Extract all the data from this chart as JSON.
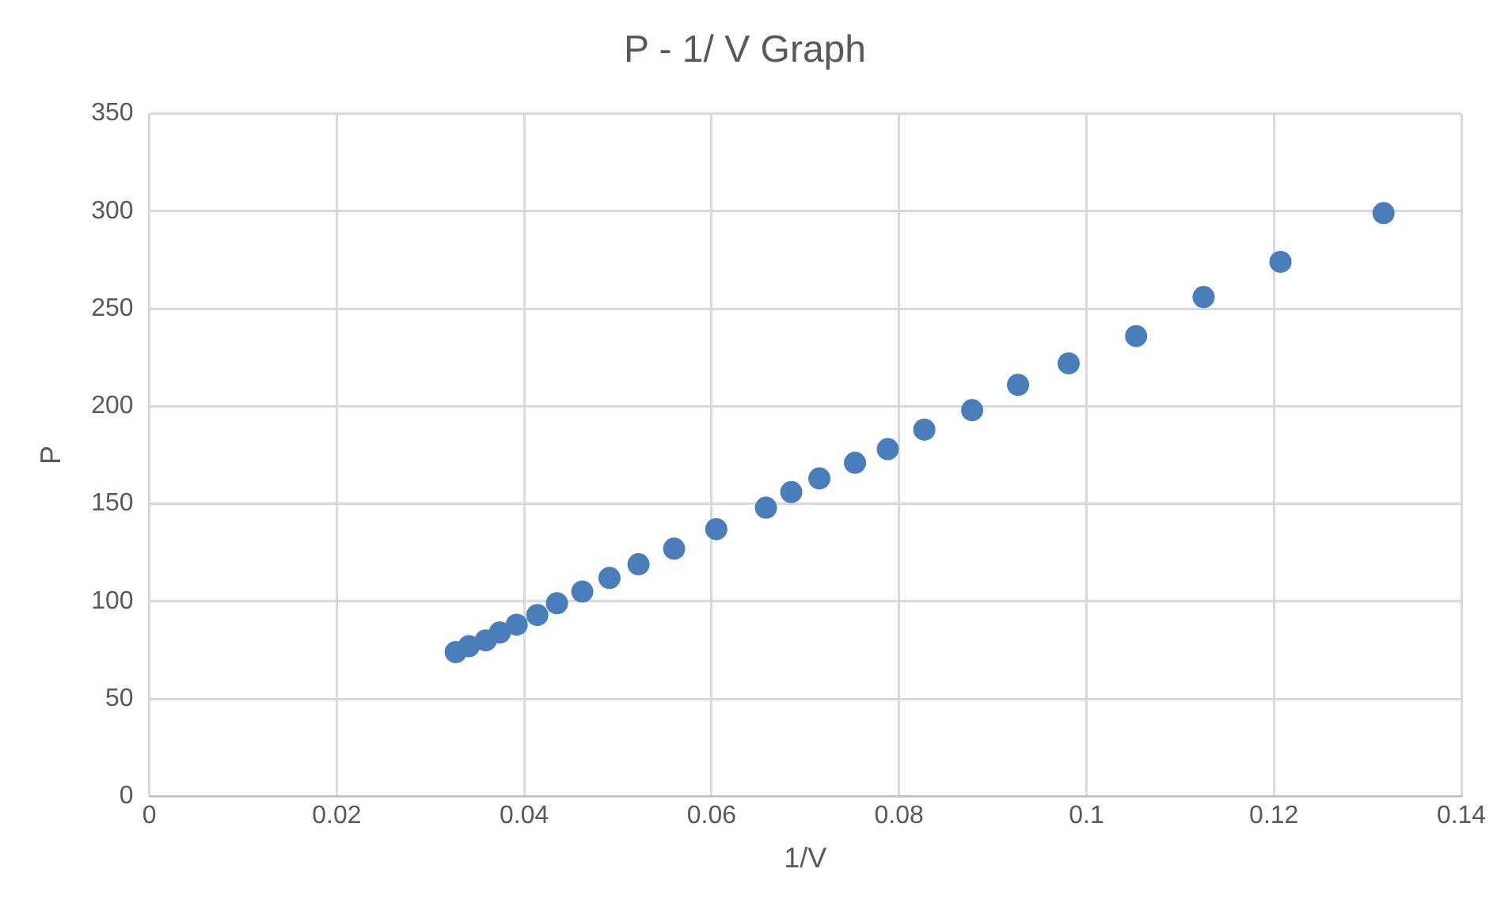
{
  "chart_data": {
    "type": "scatter",
    "title": "P - 1/ V Graph",
    "xlabel": "1/V",
    "ylabel": "P",
    "x": [
      0.0327,
      0.0341,
      0.0359,
      0.0374,
      0.0392,
      0.0414,
      0.0435,
      0.0462,
      0.0491,
      0.0522,
      0.056,
      0.0605,
      0.0658,
      0.0685,
      0.0715,
      0.0753,
      0.0788,
      0.0827,
      0.0878,
      0.0927,
      0.0981,
      0.1053,
      0.1125,
      0.1207,
      0.1317
    ],
    "series": [
      {
        "color": "#4a7ebb",
        "values": [
          74,
          77,
          80,
          84,
          88,
          93,
          99,
          105,
          112,
          119,
          127,
          137,
          148,
          156,
          163,
          171,
          178,
          188,
          198,
          211,
          222,
          236,
          256,
          274,
          299
        ]
      }
    ],
    "xlim": [
      0,
      0.14
    ],
    "xticks": [
      0,
      0.02,
      0.04,
      0.06,
      0.08,
      0.1,
      0.12,
      0.14
    ],
    "ylim": [
      0,
      350
    ],
    "yticks": [
      0,
      50,
      100,
      150,
      200,
      250,
      300,
      350
    ],
    "grid": true,
    "legend": false,
    "marker": "circle"
  }
}
